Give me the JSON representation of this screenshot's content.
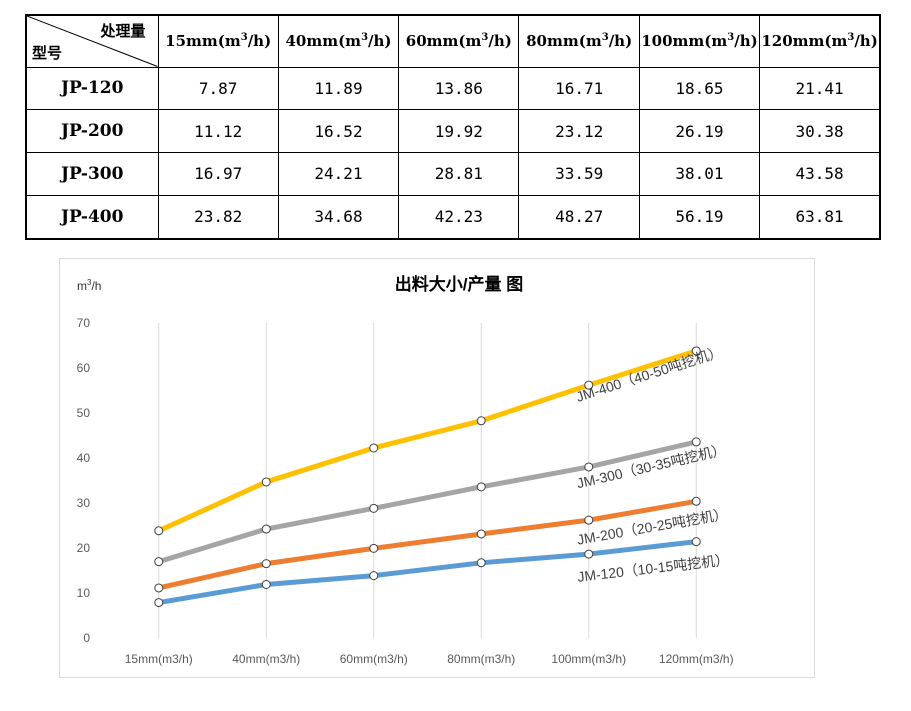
{
  "table": {
    "corner_top": "处理量",
    "corner_bottom": "型号",
    "columns": [
      "15mm(m3/h)",
      "40mm(m3/h)",
      "60mm(m3/h)",
      "80mm(m3/h)",
      "100mm(m3/h)",
      "120mm(m3/h)"
    ],
    "rows": [
      {
        "model": "JP-120",
        "values": [
          "7.87",
          "11.89",
          "13.86",
          "16.71",
          "18.65",
          "21.41"
        ]
      },
      {
        "model": "JP-200",
        "values": [
          "11.12",
          "16.52",
          "19.92",
          "23.12",
          "26.19",
          "30.38"
        ]
      },
      {
        "model": "JP-300",
        "values": [
          "16.97",
          "24.21",
          "28.81",
          "33.59",
          "38.01",
          "43.58"
        ]
      },
      {
        "model": "JP-400",
        "values": [
          "23.82",
          "34.68",
          "42.23",
          "48.27",
          "56.19",
          "63.81"
        ]
      }
    ]
  },
  "chart_data": {
    "type": "line",
    "title": "出料大小/产量 图",
    "ylabel": "m3/h",
    "xlabel": "",
    "categories": [
      "15mm(m3/h)",
      "40mm(m3/h)",
      "60mm(m3/h)",
      "80mm(m3/h)",
      "100mm(m3/h)",
      "120mm(m3/h)"
    ],
    "ylim": [
      0,
      70
    ],
    "yticks": [
      0,
      10,
      20,
      30,
      40,
      50,
      60,
      70
    ],
    "grid": "vertical",
    "legend": "none",
    "series": [
      {
        "name": "JM-120（10-15吨挖机）",
        "color": "#5b9bd5",
        "values": [
          7.87,
          11.89,
          13.86,
          16.71,
          18.65,
          21.41
        ]
      },
      {
        "name": "JM-200（20-25吨挖机）",
        "color": "#ed7d31",
        "values": [
          11.12,
          16.52,
          19.92,
          23.12,
          26.19,
          30.38
        ]
      },
      {
        "name": "JM-300（30-35吨挖机）",
        "color": "#a5a5a5",
        "values": [
          16.97,
          24.21,
          28.81,
          33.59,
          38.01,
          43.58
        ]
      },
      {
        "name": "JM-400（40-50吨挖机）",
        "color": "#ffc000",
        "values": [
          23.82,
          34.68,
          42.23,
          48.27,
          56.19,
          63.81
        ]
      }
    ]
  }
}
